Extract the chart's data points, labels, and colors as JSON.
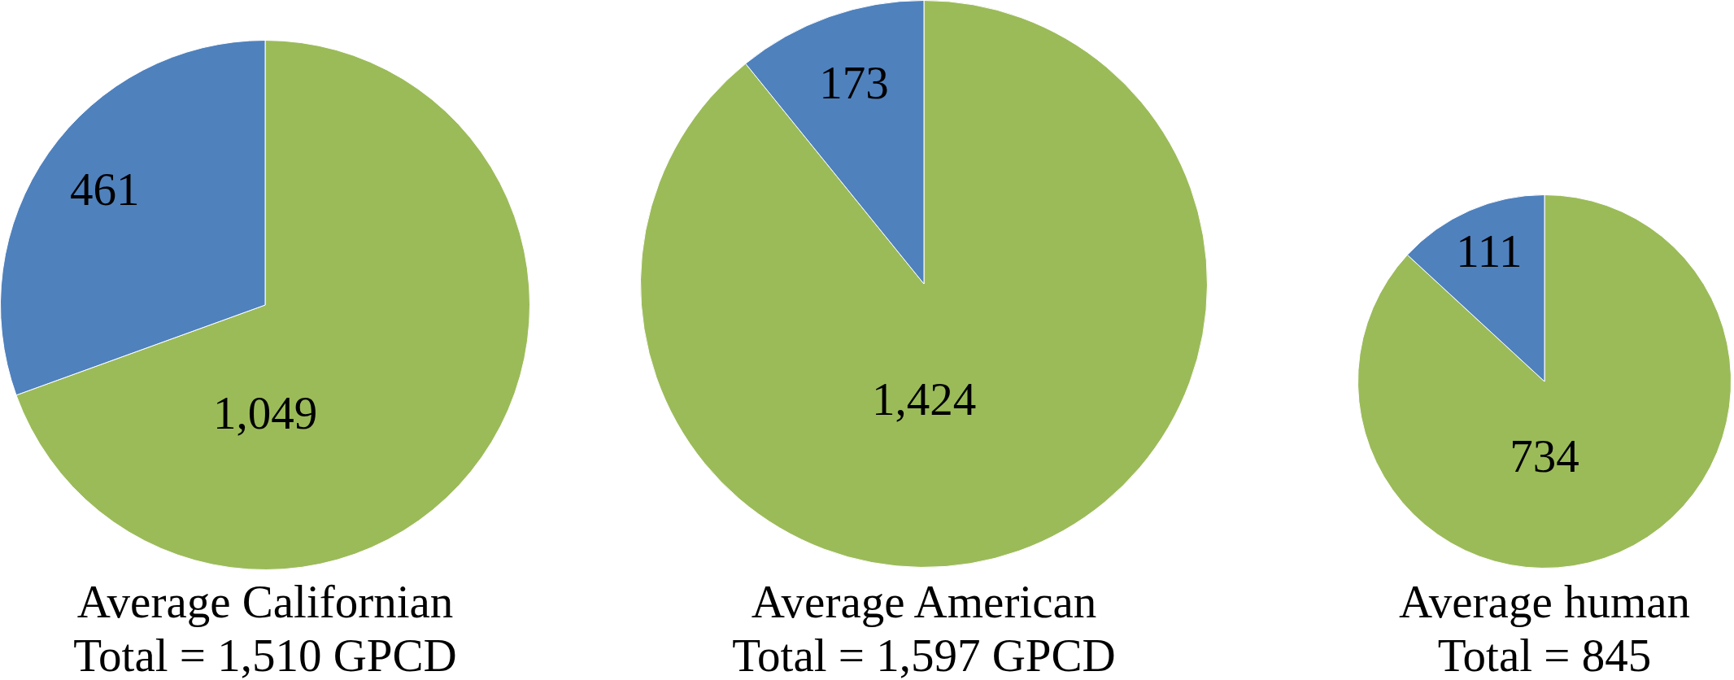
{
  "chart_data": [
    {
      "type": "pie",
      "title": "Average Californian",
      "subtitle": "Total = 1,510 GPCD",
      "categories": [
        null,
        null
      ],
      "values": [
        1049,
        461
      ],
      "colors": [
        "#9bbb59",
        "#4f81bd"
      ],
      "value_labels": [
        "1,049",
        "461"
      ]
    },
    {
      "type": "pie",
      "title": "Average American",
      "subtitle": "Total = 1,597 GPCD",
      "categories": [
        null,
        null
      ],
      "values": [
        1424,
        173
      ],
      "colors": [
        "#9bbb59",
        "#4f81bd"
      ],
      "value_labels": [
        "1,424",
        "173"
      ]
    },
    {
      "type": "pie",
      "title": "Average human",
      "subtitle": "Total = 845",
      "categories": [
        null,
        null
      ],
      "values": [
        734,
        111
      ],
      "colors": [
        "#9bbb59",
        "#4f81bd"
      ],
      "value_labels": [
        "734",
        "111"
      ]
    }
  ]
}
